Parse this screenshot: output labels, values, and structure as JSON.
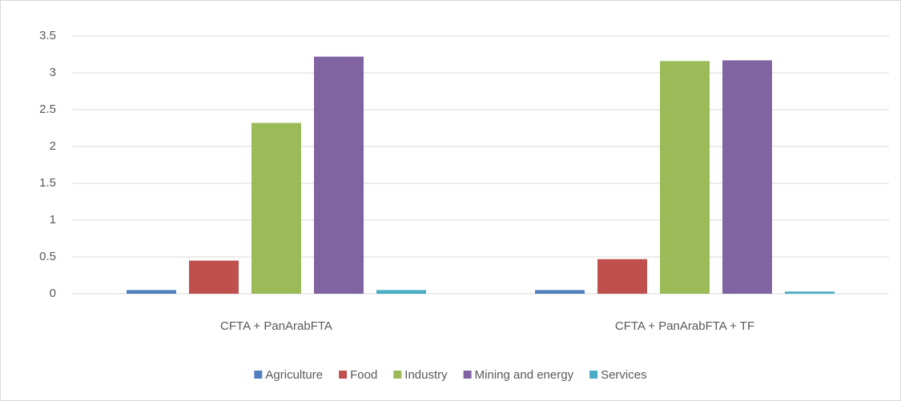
{
  "chart_data": {
    "type": "bar",
    "categories": [
      "CFTA + PanArabFTA",
      "CFTA + PanArabFTA + TF"
    ],
    "series": [
      {
        "name": "Agriculture",
        "color": "#4f81bd",
        "values": [
          0.05,
          0.05
        ]
      },
      {
        "name": "Food",
        "color": "#c0504d",
        "values": [
          0.45,
          0.47
        ]
      },
      {
        "name": "Industry",
        "color": "#9bbb59",
        "values": [
          2.32,
          3.16
        ]
      },
      {
        "name": "Mining and energy",
        "color": "#8064a2",
        "values": [
          3.22,
          3.17
        ]
      },
      {
        "name": "Services",
        "color": "#4bacc6",
        "values": [
          0.05,
          0.03
        ]
      }
    ],
    "ylim": [
      0,
      3.5
    ],
    "yticks": [
      0,
      0.5,
      1,
      1.5,
      2,
      2.5,
      3,
      3.5
    ],
    "grid": true,
    "legend": "bottom"
  }
}
